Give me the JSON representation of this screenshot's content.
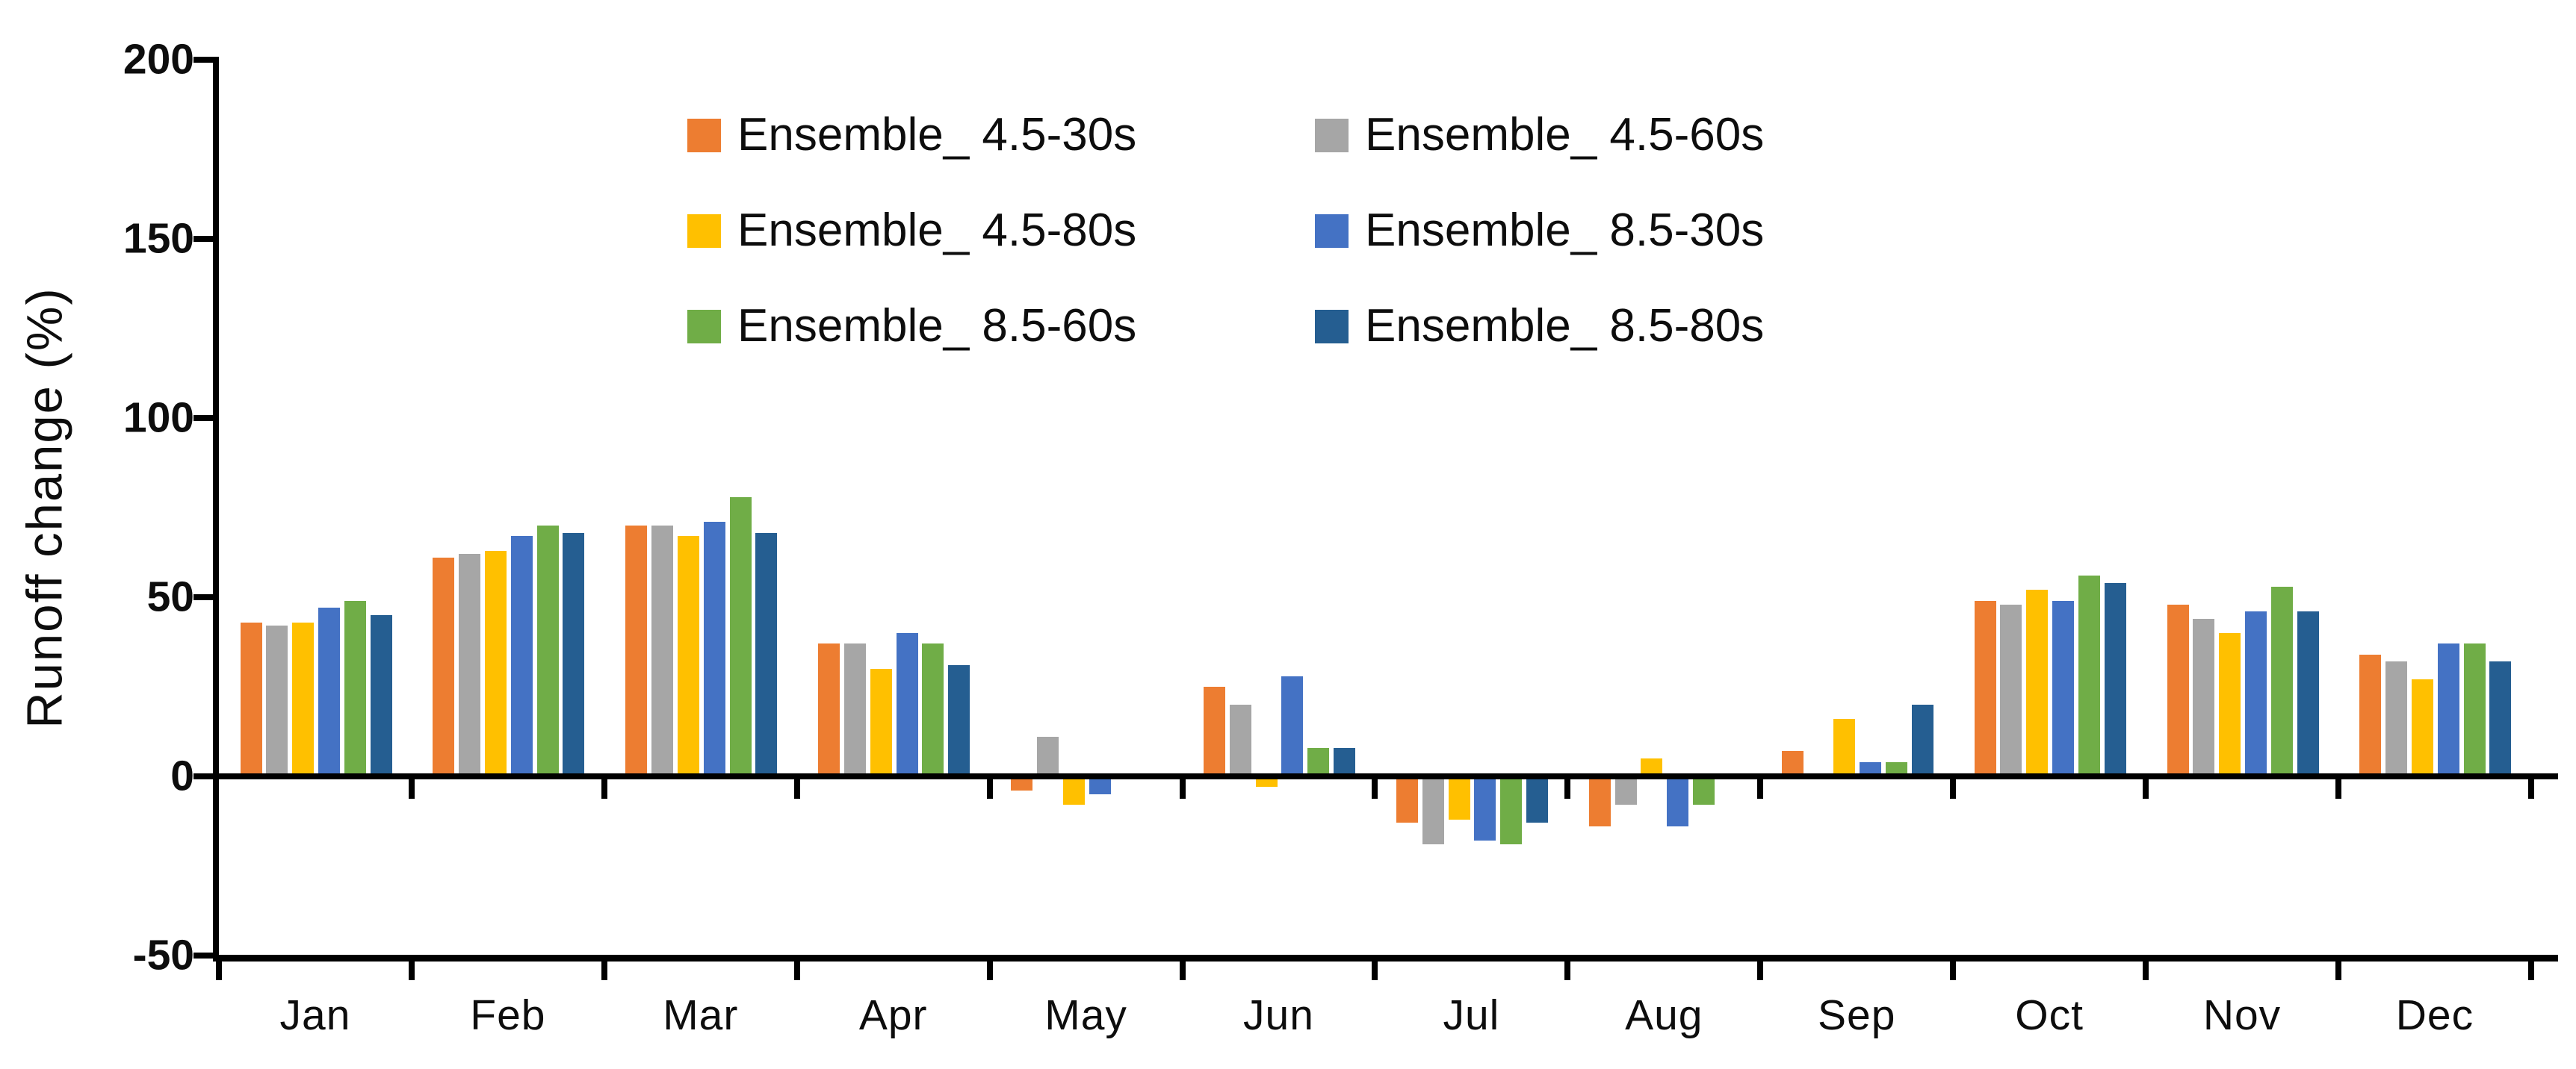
{
  "chart_data": {
    "type": "bar",
    "title": "",
    "xlabel": "",
    "ylabel": "Runoff change (%)",
    "ylim": [
      -50,
      200
    ],
    "yticks": [
      200,
      150,
      100,
      50,
      0,
      -50
    ],
    "grid": false,
    "legend_position": "top-center, two columns, three rows",
    "background": "#ffffff",
    "axis_color": "#000000",
    "categories": [
      "Jan",
      "Feb",
      "Mar",
      "Apr",
      "May",
      "Jun",
      "Jul",
      "Aug",
      "Sep",
      "Oct",
      "Nov",
      "Dec"
    ],
    "series": [
      {
        "name": "Ensemble_ 4.5-30s",
        "color": "#ED7D31",
        "values": [
          43,
          61,
          70,
          37,
          -4,
          25,
          -13,
          -14,
          7,
          49,
          48,
          34
        ]
      },
      {
        "name": "Ensemble_ 4.5-60s",
        "color": "#A6A6A6",
        "values": [
          42,
          62,
          70,
          37,
          11,
          20,
          -19,
          -8,
          0,
          48,
          44,
          32
        ]
      },
      {
        "name": "Ensemble_ 4.5-80s",
        "color": "#FFC000",
        "values": [
          43,
          63,
          67,
          30,
          -8,
          -3,
          -12,
          5,
          16,
          52,
          40,
          27
        ]
      },
      {
        "name": "Ensemble_ 8.5-30s",
        "color": "#4472C4",
        "values": [
          47,
          67,
          71,
          40,
          -5,
          28,
          -18,
          -14,
          4,
          49,
          46,
          37
        ]
      },
      {
        "name": "Ensemble_ 8.5-60s",
        "color": "#70AD47",
        "values": [
          49,
          70,
          78,
          37,
          0,
          8,
          -19,
          -8,
          4,
          56,
          53,
          37
        ]
      },
      {
        "name": "Ensemble_ 8.5-80s",
        "color": "#255E91",
        "values": [
          45,
          68,
          68,
          31,
          0,
          8,
          -13,
          0,
          20,
          54,
          46,
          32
        ]
      }
    ]
  }
}
